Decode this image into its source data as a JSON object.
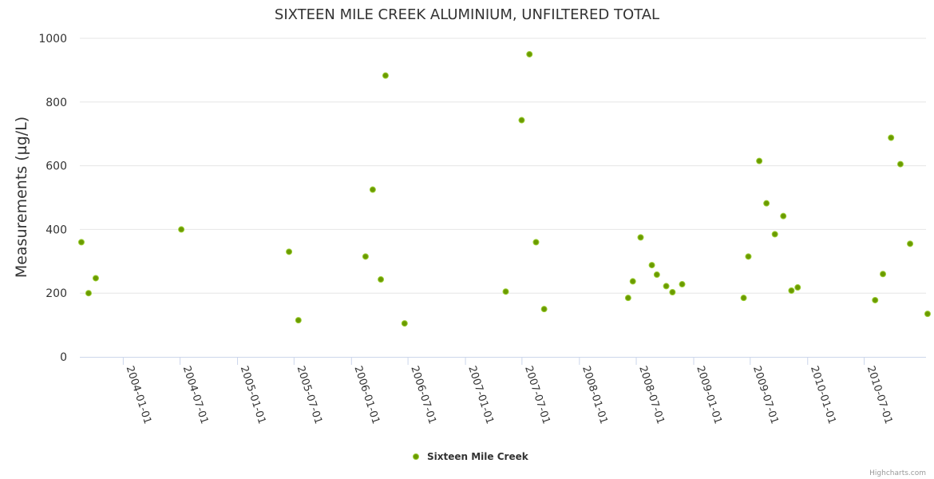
{
  "chart_data": {
    "type": "scatter",
    "title": "SIXTEEN MILE CREEK ALUMINIUM, UNFILTERED TOTAL",
    "ylabel": "Measurements (µg/L)",
    "xlabel": "",
    "ylim": [
      0,
      1000
    ],
    "xlim": [
      "2003-08-15",
      "2011-01-15"
    ],
    "y_ticks": [
      0,
      200,
      400,
      600,
      800,
      1000
    ],
    "x_ticks": [
      "2004-01-01",
      "2004-07-01",
      "2005-01-01",
      "2005-07-01",
      "2006-01-01",
      "2006-07-01",
      "2007-01-01",
      "2007-07-01",
      "2008-01-01",
      "2008-07-01",
      "2009-01-01",
      "2009-07-01",
      "2010-01-01",
      "2010-07-01"
    ],
    "grid": "horizontal",
    "legend_position": "bottom-center",
    "series": [
      {
        "name": "Sixteen Mile Creek",
        "color": "#6b9b00",
        "points": [
          {
            "x": "2003-08-20",
            "y": 360
          },
          {
            "x": "2003-09-12",
            "y": 200
          },
          {
            "x": "2003-10-05",
            "y": 247
          },
          {
            "x": "2004-07-05",
            "y": 400
          },
          {
            "x": "2005-06-15",
            "y": 330
          },
          {
            "x": "2005-07-15",
            "y": 115
          },
          {
            "x": "2006-02-15",
            "y": 315
          },
          {
            "x": "2006-03-10",
            "y": 525
          },
          {
            "x": "2006-04-05",
            "y": 243
          },
          {
            "x": "2006-04-20",
            "y": 883
          },
          {
            "x": "2006-06-20",
            "y": 105
          },
          {
            "x": "2007-05-10",
            "y": 205
          },
          {
            "x": "2007-06-30",
            "y": 743
          },
          {
            "x": "2007-07-25",
            "y": 950
          },
          {
            "x": "2007-08-15",
            "y": 360
          },
          {
            "x": "2007-09-10",
            "y": 150
          },
          {
            "x": "2008-06-05",
            "y": 185
          },
          {
            "x": "2008-06-20",
            "y": 237
          },
          {
            "x": "2008-07-15",
            "y": 375
          },
          {
            "x": "2008-08-20",
            "y": 288
          },
          {
            "x": "2008-09-05",
            "y": 258
          },
          {
            "x": "2008-10-05",
            "y": 222
          },
          {
            "x": "2008-10-25",
            "y": 203
          },
          {
            "x": "2008-11-25",
            "y": 228
          },
          {
            "x": "2009-06-10",
            "y": 185
          },
          {
            "x": "2009-06-25",
            "y": 315
          },
          {
            "x": "2009-07-30",
            "y": 615
          },
          {
            "x": "2009-08-22",
            "y": 482
          },
          {
            "x": "2009-09-18",
            "y": 385
          },
          {
            "x": "2009-10-15",
            "y": 442
          },
          {
            "x": "2009-11-10",
            "y": 208
          },
          {
            "x": "2009-11-30",
            "y": 218
          },
          {
            "x": "2010-08-05",
            "y": 178
          },
          {
            "x": "2010-08-30",
            "y": 260
          },
          {
            "x": "2010-09-25",
            "y": 688
          },
          {
            "x": "2010-10-25",
            "y": 605
          },
          {
            "x": "2010-11-25",
            "y": 355
          },
          {
            "x": "2011-01-20",
            "y": 135
          }
        ]
      }
    ]
  },
  "credits": "Highcharts.com"
}
